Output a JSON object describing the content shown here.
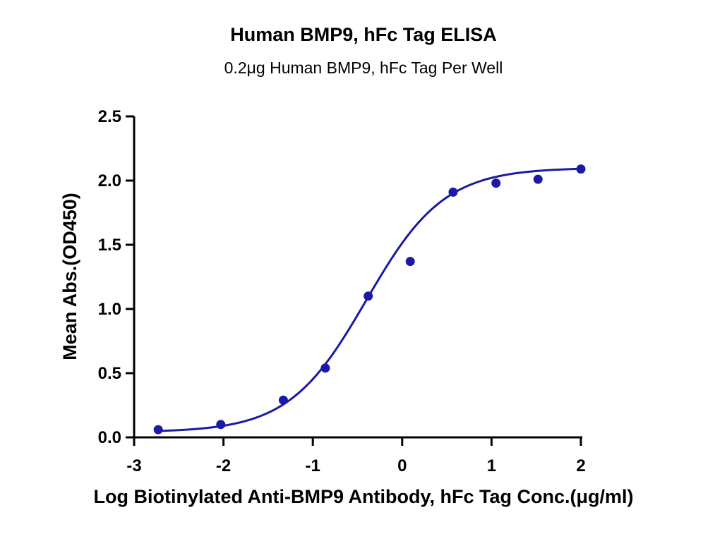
{
  "chart_data": {
    "type": "scatter",
    "title": "Human BMP9, hFc Tag ELISA",
    "subtitle": "0.2μg Human BMP9, hFc Tag Per Well",
    "xlabel": "Log Biotinylated Anti-BMP9 Antibody, hFc Tag Conc.(μg/ml)",
    "ylabel": "Mean Abs.(OD450)",
    "xlim": [
      -3,
      2
    ],
    "ylim": [
      0,
      2.5
    ],
    "x_ticks": [
      "-3",
      "-2",
      "-1",
      "0",
      "1",
      "2"
    ],
    "y_ticks": [
      "0.0",
      "0.5",
      "1.0",
      "1.5",
      "2.0",
      "2.5"
    ],
    "grid": false,
    "series": [
      {
        "color": "#1a1aa6",
        "x": [
          -2.73,
          -2.03,
          -1.33,
          -0.86,
          -0.38,
          0.09,
          0.57,
          1.05,
          1.52,
          2.0
        ],
        "y": [
          0.06,
          0.1,
          0.29,
          0.54,
          1.1,
          1.37,
          1.91,
          1.98,
          2.01,
          2.09
        ]
      }
    ],
    "fit_curve": {
      "model": "four-parameter logistic",
      "color": "#1a1aa6",
      "bottom": 0.04,
      "top": 2.1,
      "log_ec50": -0.4,
      "hill_slope": 1.0
    }
  }
}
